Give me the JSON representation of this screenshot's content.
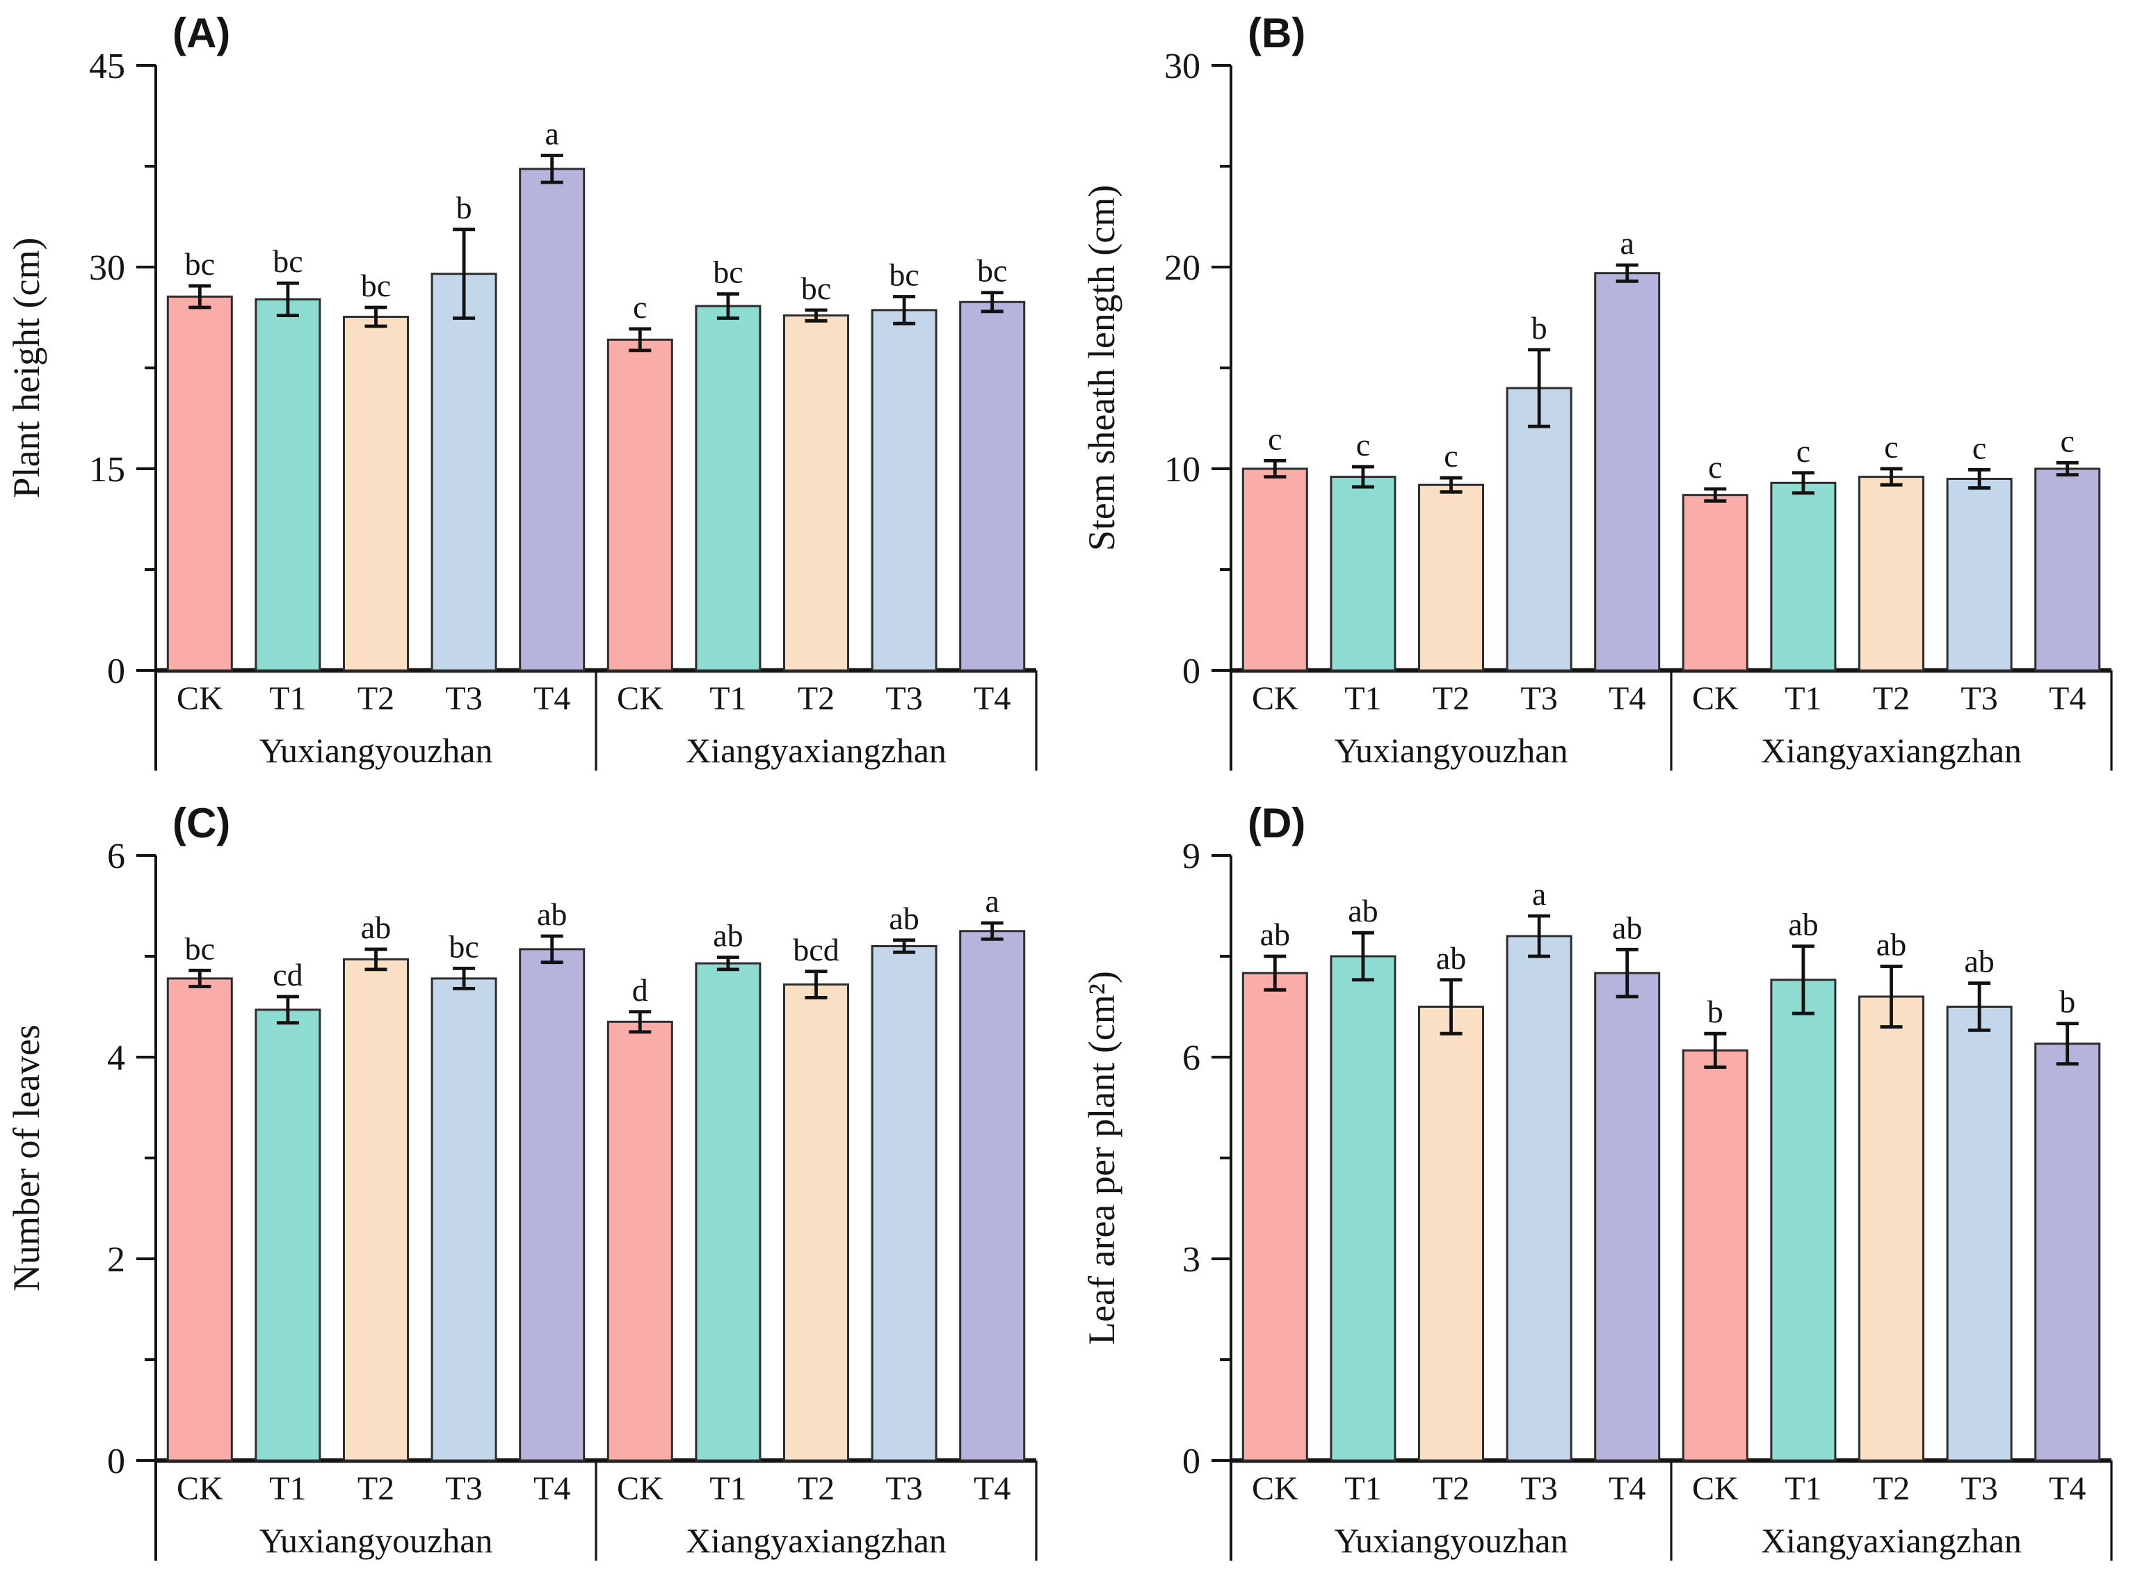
{
  "figure": {
    "background": "#ffffff",
    "categories": [
      "CK",
      "T1",
      "T2",
      "T3",
      "T4"
    ],
    "group_names": [
      "Yuxiangyouzhan",
      "Xiangyaxiangzhan"
    ],
    "bar_colors": {
      "CK": "#F9ACA8",
      "T1": "#8EDCD1",
      "T2": "#FBDFC4",
      "T3": "#C4D6E9",
      "T4": "#B6B4DC"
    },
    "bar_border_color": "#2D2D2D",
    "axis_color": "#141414",
    "error_bar_color": "#111111"
  },
  "chart_data": [
    {
      "type": "bar",
      "panel_label": "(A)",
      "ylabel": "Plant height (cm)",
      "xlabel": "",
      "ylim": [
        0,
        45
      ],
      "yticks": [
        0,
        15,
        30,
        45
      ],
      "minor_tick_step": 7.5,
      "legend": "none",
      "grid": false,
      "categories": [
        "CK",
        "T1",
        "T2",
        "T3",
        "T4"
      ],
      "groups": [
        {
          "name": "Yuxiangyouzhan",
          "values": [
            27.8,
            27.6,
            26.3,
            29.5,
            37.3
          ],
          "errors": [
            0.8,
            1.2,
            0.7,
            3.3,
            1.0
          ],
          "sig_letters": [
            "bc",
            "bc",
            "bc",
            "b",
            "a"
          ]
        },
        {
          "name": "Xiangyaxiangzhan",
          "values": [
            24.6,
            27.1,
            26.4,
            26.8,
            27.4
          ],
          "errors": [
            0.8,
            0.9,
            0.4,
            1.0,
            0.7
          ],
          "sig_letters": [
            "c",
            "bc",
            "bc",
            "bc",
            "bc"
          ]
        }
      ]
    },
    {
      "type": "bar",
      "panel_label": "(B)",
      "ylabel": "Stem sheath length (cm)",
      "xlabel": "",
      "ylim": [
        0,
        30
      ],
      "yticks": [
        0,
        10,
        20,
        30
      ],
      "minor_tick_step": 5,
      "legend": "none",
      "grid": false,
      "categories": [
        "CK",
        "T1",
        "T2",
        "T3",
        "T4"
      ],
      "groups": [
        {
          "name": "Yuxiangyouzhan",
          "values": [
            10.0,
            9.6,
            9.2,
            14.0,
            19.7
          ],
          "errors": [
            0.4,
            0.5,
            0.35,
            1.9,
            0.4
          ],
          "sig_letters": [
            "c",
            "c",
            "c",
            "b",
            "a"
          ]
        },
        {
          "name": "Xiangyaxiangzhan",
          "values": [
            8.7,
            9.3,
            9.6,
            9.5,
            10.0
          ],
          "errors": [
            0.3,
            0.5,
            0.4,
            0.45,
            0.3
          ],
          "sig_letters": [
            "c",
            "c",
            "c",
            "c",
            "c"
          ]
        }
      ]
    },
    {
      "type": "bar",
      "panel_label": "(C)",
      "ylabel": "Number of leaves",
      "xlabel": "",
      "ylim": [
        0,
        6
      ],
      "yticks": [
        0,
        2,
        4,
        6
      ],
      "minor_tick_step": 1,
      "legend": "none",
      "grid": false,
      "categories": [
        "CK",
        "T1",
        "T2",
        "T3",
        "T4"
      ],
      "groups": [
        {
          "name": "Yuxiangyouzhan",
          "values": [
            4.78,
            4.47,
            4.97,
            4.78,
            5.07
          ],
          "errors": [
            0.08,
            0.13,
            0.1,
            0.1,
            0.13
          ],
          "sig_letters": [
            "bc",
            "cd",
            "ab",
            "bc",
            "ab"
          ]
        },
        {
          "name": "Xiangyaxiangzhan",
          "values": [
            4.35,
            4.93,
            4.72,
            5.1,
            5.25
          ],
          "errors": [
            0.1,
            0.06,
            0.13,
            0.06,
            0.08
          ],
          "sig_letters": [
            "d",
            "ab",
            "bcd",
            "ab",
            "a"
          ]
        }
      ]
    },
    {
      "type": "bar",
      "panel_label": "(D)",
      "ylabel": "Leaf area per plant (cm²)",
      "xlabel": "",
      "ylim": [
        0,
        9
      ],
      "yticks": [
        0,
        3,
        6,
        9
      ],
      "minor_tick_step": 1.5,
      "legend": "none",
      "grid": false,
      "categories": [
        "CK",
        "T1",
        "T2",
        "T3",
        "T4"
      ],
      "groups": [
        {
          "name": "Yuxiangyouzhan",
          "values": [
            7.25,
            7.5,
            6.75,
            7.8,
            7.25
          ],
          "errors": [
            0.25,
            0.35,
            0.4,
            0.3,
            0.35
          ],
          "sig_letters": [
            "ab",
            "ab",
            "ab",
            "a",
            "ab"
          ]
        },
        {
          "name": "Xiangyaxiangzhan",
          "values": [
            6.1,
            7.15,
            6.9,
            6.75,
            6.2
          ],
          "errors": [
            0.25,
            0.5,
            0.45,
            0.35,
            0.3
          ],
          "sig_letters": [
            "b",
            "ab",
            "ab",
            "ab",
            "b"
          ]
        }
      ]
    }
  ]
}
